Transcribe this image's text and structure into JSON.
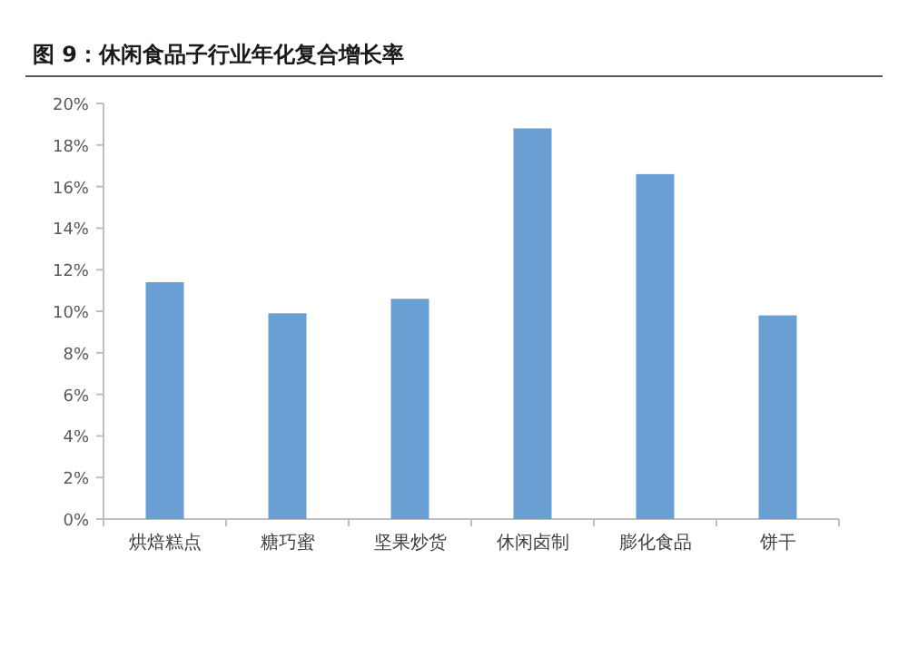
{
  "chart_data": {
    "type": "bar",
    "title": "图 9：休闲食品子行业年化复合增长率",
    "categories": [
      "烘焙糕点",
      "糖巧蜜",
      "坚果炒货",
      "休闲卤制",
      "膨化食品",
      "饼干"
    ],
    "values": [
      11.4,
      9.9,
      10.6,
      18.8,
      16.6,
      9.8
    ],
    "color": "#6a9fd4",
    "ylim": [
      0,
      20
    ],
    "yticks": [
      {
        "value": 0,
        "label": "0%"
      },
      {
        "value": 2,
        "label": "2%"
      },
      {
        "value": 4,
        "label": "4%"
      },
      {
        "value": 6,
        "label": "6%"
      },
      {
        "value": 8,
        "label": "8%"
      },
      {
        "value": 10,
        "label": "10%"
      },
      {
        "value": 12,
        "label": "12%"
      },
      {
        "value": 14,
        "label": "14%"
      },
      {
        "value": 16,
        "label": "16%"
      },
      {
        "value": 18,
        "label": "18%"
      },
      {
        "value": 20,
        "label": "20%"
      }
    ],
    "grid": false
  }
}
